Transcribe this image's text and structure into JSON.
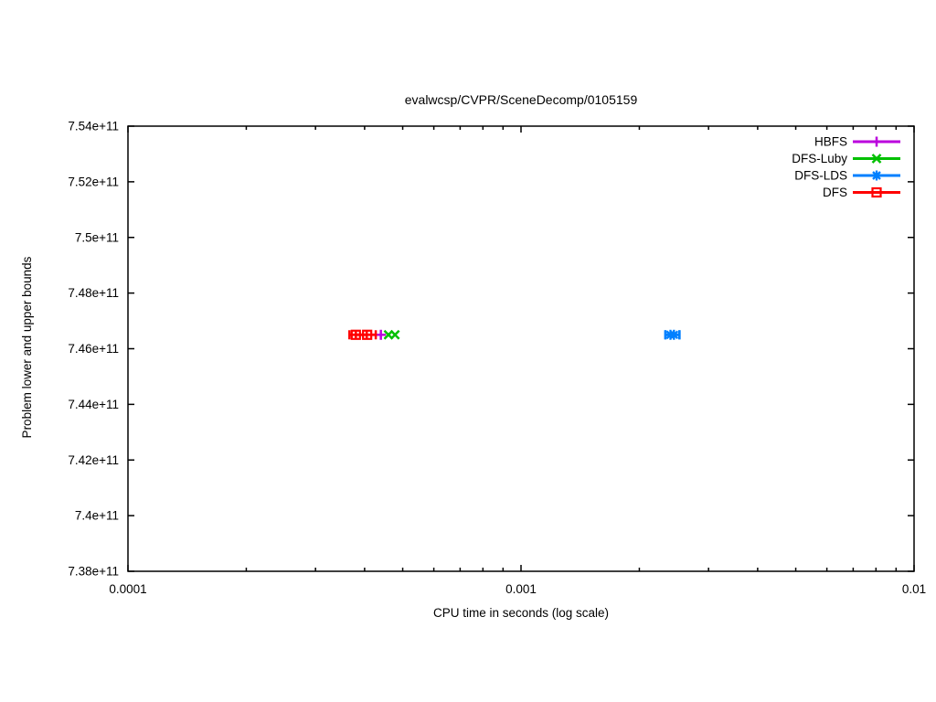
{
  "chart_data": {
    "type": "scatter",
    "title": "evalwcsp/CVPR/SceneDecomp/0105159",
    "xlabel": "CPU time in seconds (log scale)",
    "ylabel": "Problem lower and upper bounds",
    "x_scale": "log",
    "xlim": [
      0.0001,
      0.01
    ],
    "ylim": [
      738000000000,
      754000000000
    ],
    "grid": false,
    "legend_position": "top-right-inside",
    "x_ticks": [
      {
        "value": 0.0001,
        "label": "0.0001"
      },
      {
        "value": 0.001,
        "label": "0.001"
      },
      {
        "value": 0.01,
        "label": "0.01"
      }
    ],
    "x_minor_ticks": [
      0.0002,
      0.0003,
      0.0004,
      0.0005,
      0.0006,
      0.0007,
      0.0008,
      0.0009,
      0.002,
      0.003,
      0.004,
      0.005,
      0.006,
      0.007,
      0.008,
      0.009
    ],
    "y_ticks": [
      {
        "value": 754000000000,
        "label": "7.54e+11"
      },
      {
        "value": 752000000000,
        "label": "7.52e+11"
      },
      {
        "value": 750000000000,
        "label": "7.5e+11"
      },
      {
        "value": 748000000000,
        "label": "7.48e+11"
      },
      {
        "value": 746000000000,
        "label": "7.46e+11"
      },
      {
        "value": 744000000000,
        "label": "7.44e+11"
      },
      {
        "value": 742000000000,
        "label": "7.42e+11"
      },
      {
        "value": 740000000000,
        "label": "7.4e+11"
      },
      {
        "value": 738000000000,
        "label": "7.38e+11"
      }
    ],
    "series": [
      {
        "name": "HBFS",
        "color": "#BB00DD",
        "marker": "plus",
        "points": [
          {
            "x": 0.00044,
            "y": 746500000000
          }
        ]
      },
      {
        "name": "DFS-Luby",
        "color": "#00C000",
        "marker": "cross",
        "points": [
          {
            "x": 0.00046,
            "y": 746500000000
          },
          {
            "x": 0.000478,
            "y": 746500000000
          }
        ]
      },
      {
        "name": "DFS-LDS",
        "color": "#0080FF",
        "marker": "asterisk",
        "points": [
          {
            "x": 0.0024,
            "y": 746500000000,
            "xerr": [
              0.00233,
              0.00253
            ]
          },
          {
            "x": 0.00245,
            "y": 746500000000,
            "xerr": [
              0.00233,
              0.00253
            ]
          }
        ]
      },
      {
        "name": "DFS",
        "color": "#FF0000",
        "marker": "square-open",
        "points": [
          {
            "x": 0.00038,
            "y": 746500000000,
            "xerr": [
              0.000366,
              0.000405
            ]
          },
          {
            "x": 0.000406,
            "y": 746500000000,
            "xerr": [
              0.00038,
              0.000427
            ]
          }
        ]
      }
    ],
    "colors": {
      "axis": "#000000",
      "text": "#000000",
      "background": "#FFFFFF"
    }
  }
}
